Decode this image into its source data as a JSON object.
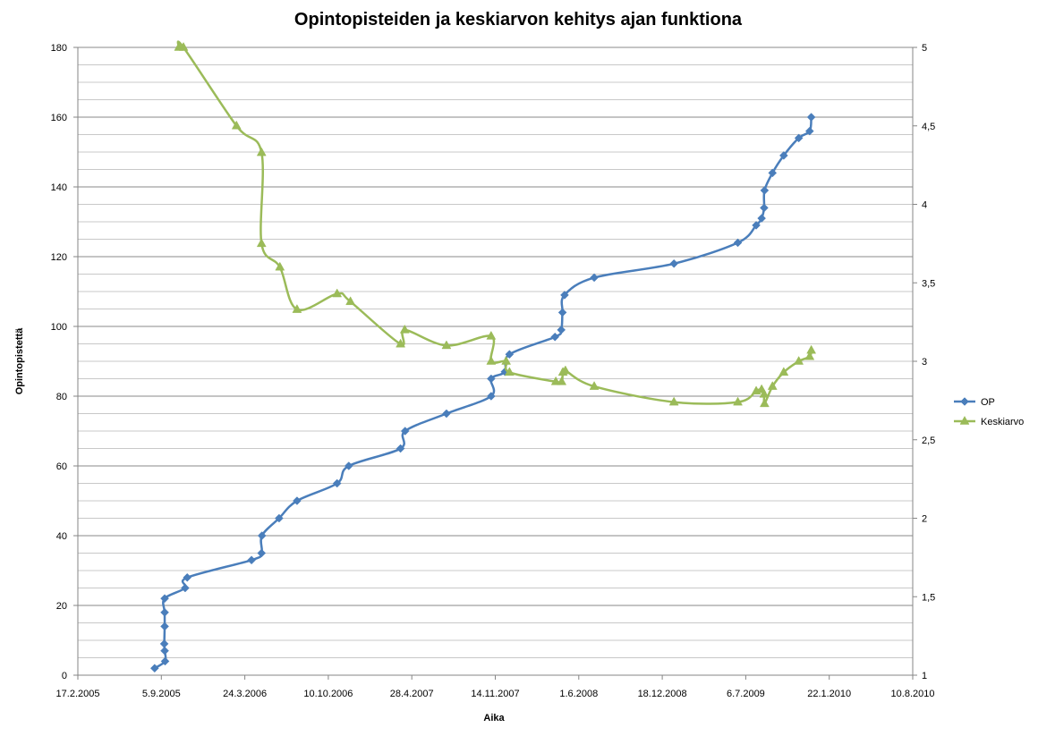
{
  "chart_data": {
    "type": "line",
    "title": "Opintopisteiden ja keskiarvon kehitys ajan funktiona",
    "xlabel": "Aika",
    "ylabel": "Opintopistettä",
    "y2label": "",
    "x_tick_labels": [
      "17.2.2005",
      "5.9.2005",
      "24.3.2006",
      "10.10.2006",
      "28.4.2007",
      "14.11.2007",
      "1.6.2008",
      "18.12.2008",
      "6.7.2009",
      "22.1.2010",
      "10.8.2010"
    ],
    "xlim": [
      "17.2.2005",
      "10.8.2010"
    ],
    "ylim": [
      0,
      180
    ],
    "y_ticks": [
      0,
      20,
      40,
      60,
      80,
      100,
      120,
      140,
      160,
      180
    ],
    "y_minor_step": 5,
    "y2lim": [
      1,
      5
    ],
    "y2_ticks": [
      1,
      1.5,
      2,
      2.5,
      3,
      3.5,
      4,
      4.5,
      5
    ],
    "y2_tick_labels": [
      "1",
      "1,5",
      "2",
      "2,5",
      "3",
      "3,5",
      "4",
      "4,5",
      "5"
    ],
    "grid": true,
    "legend_position": "right",
    "series": [
      {
        "name": "OP",
        "axis": "left",
        "color": "#4a7ebb",
        "marker": "diamond",
        "points": [
          [
            "20.8.2005",
            2
          ],
          [
            "14.9.2005",
            4
          ],
          [
            "13.9.2005",
            7
          ],
          [
            "12.9.2005",
            9
          ],
          [
            "13.9.2005",
            14
          ],
          [
            "13.9.2005",
            18
          ],
          [
            "13.9.2005",
            22
          ],
          [
            "1.11.2005",
            25
          ],
          [
            "6.11.2005",
            28
          ],
          [
            "9.4.2006",
            33
          ],
          [
            "3.5.2006",
            35
          ],
          [
            "4.5.2006",
            40
          ],
          [
            "14.6.2006",
            45
          ],
          [
            "27.7.2006",
            50
          ],
          [
            "31.10.2006",
            55
          ],
          [
            "28.11.2006",
            60
          ],
          [
            "1.4.2007",
            65
          ],
          [
            "12.4.2007",
            70
          ],
          [
            "20.7.2007",
            75
          ],
          [
            "4.11.2007",
            80
          ],
          [
            "4.11.2007",
            85
          ],
          [
            "7.12.2007",
            87
          ],
          [
            "18.12.2007",
            92
          ],
          [
            "5.4.2008",
            97
          ],
          [
            "20.4.2008",
            99
          ],
          [
            "23.4.2008",
            104
          ],
          [
            "28.4.2008",
            109
          ],
          [
            "8.7.2008",
            114
          ],
          [
            "15.1.2009",
            118
          ],
          [
            "17.6.2009",
            124
          ],
          [
            "31.7.2009",
            129
          ],
          [
            "13.8.2009",
            131
          ],
          [
            "19.8.2009",
            134
          ],
          [
            "20.8.2009",
            139
          ],
          [
            "8.9.2009",
            144
          ],
          [
            "5.10.2009",
            149
          ],
          [
            "10.11.2009",
            154
          ],
          [
            "6.12.2009",
            156
          ],
          [
            "10.12.2009",
            160
          ]
        ]
      },
      {
        "name": "Keskiarvo",
        "axis": "right",
        "color": "#9bbb59",
        "marker": "triangle",
        "points": [
          [
            "17.10.2005",
            5.0
          ],
          [
            "28.10.2005",
            5.0
          ],
          [
            "4.3.2006",
            4.5
          ],
          [
            "3.5.2006",
            4.33
          ],
          [
            "3.5.2006",
            3.75
          ],
          [
            "16.6.2006",
            3.6
          ],
          [
            "27.7.2006",
            3.33
          ],
          [
            "31.10.2006",
            3.43
          ],
          [
            "2.12.2006",
            3.38
          ],
          [
            "1.4.2007",
            3.11
          ],
          [
            "11.4.2007",
            3.2
          ],
          [
            "20.7.2007",
            3.1
          ],
          [
            "4.11.2007",
            3.16
          ],
          [
            "4.11.2007",
            3.0
          ],
          [
            "10.12.2007",
            3.0
          ],
          [
            "18.12.2007",
            2.93
          ],
          [
            "7.4.2008",
            2.87
          ],
          [
            "21.4.2008",
            2.87
          ],
          [
            "24.4.2008",
            2.93
          ],
          [
            "30.4.2008",
            2.94
          ],
          [
            "8.7.2008",
            2.84
          ],
          [
            "15.1.2009",
            2.74
          ],
          [
            "17.6.2009",
            2.74
          ],
          [
            "31.7.2009",
            2.81
          ],
          [
            "13.8.2009",
            2.82
          ],
          [
            "19.8.2009",
            2.79
          ],
          [
            "20.8.2009",
            2.73
          ],
          [
            "8.9.2009",
            2.84
          ],
          [
            "5.10.2009",
            2.93
          ],
          [
            "10.11.2009",
            3.0
          ],
          [
            "6.12.2009",
            3.03
          ],
          [
            "10.12.2009",
            3.07
          ]
        ]
      }
    ]
  }
}
